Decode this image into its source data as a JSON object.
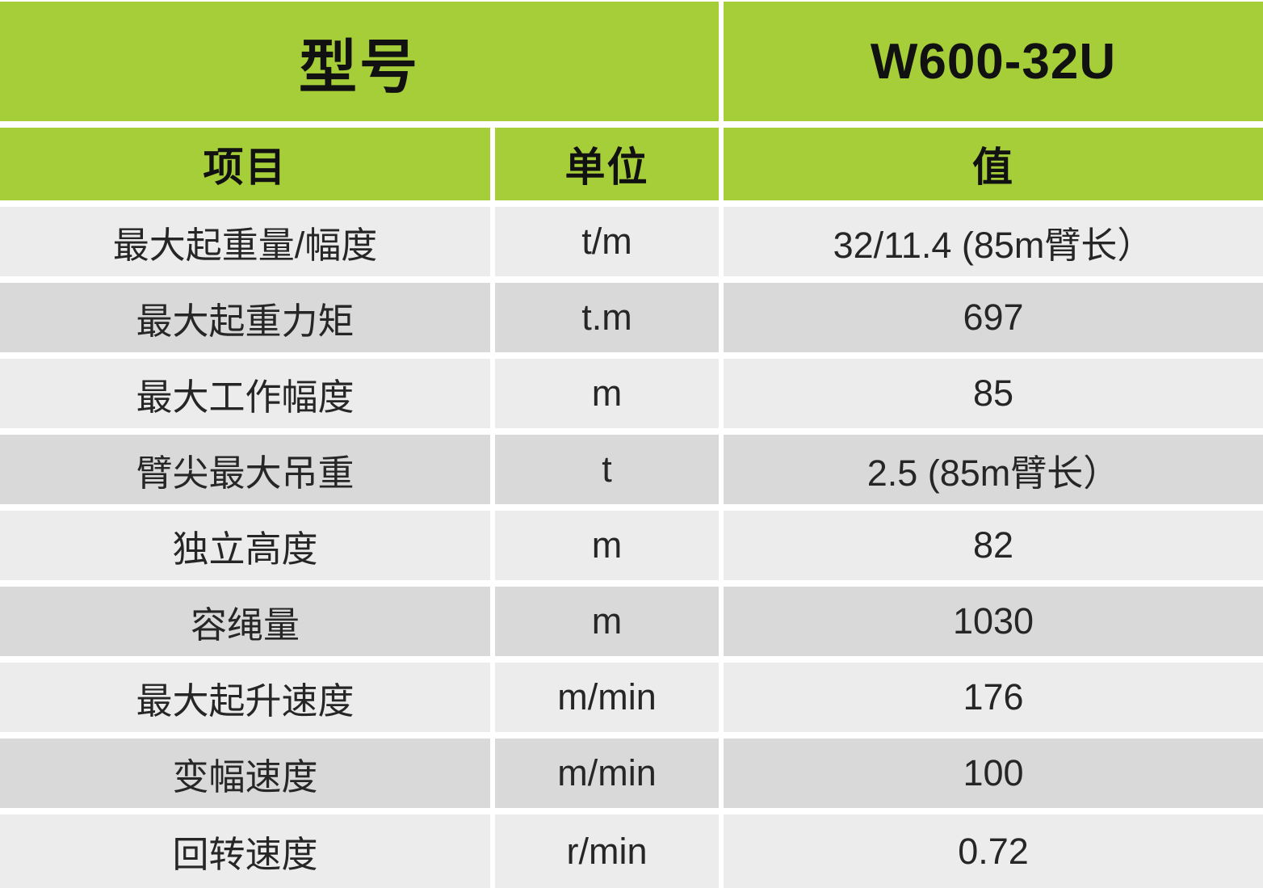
{
  "colors": {
    "header_green": "#a6ce39",
    "row_light": "#ececec",
    "row_dark": "#d9d9d9",
    "gap_white": "#ffffff",
    "header_text": "#111111",
    "body_text": "#262626"
  },
  "header": {
    "model_label": "型号",
    "model_value": "W600-32U"
  },
  "columns": {
    "item": "项目",
    "unit": "单位",
    "value": "值"
  },
  "rows": [
    {
      "item": "最大起重量/幅度",
      "unit": "t/m",
      "value": "32/11.4 (85m臂长）"
    },
    {
      "item": "最大起重力矩",
      "unit": "t.m",
      "value": "697"
    },
    {
      "item": "最大工作幅度",
      "unit": "m",
      "value": "85"
    },
    {
      "item": "臂尖最大吊重",
      "unit": "t",
      "value": "2.5 (85m臂长）"
    },
    {
      "item": "独立高度",
      "unit": "m",
      "value": "82"
    },
    {
      "item": "容绳量",
      "unit": "m",
      "value": "1030"
    },
    {
      "item": "最大起升速度",
      "unit": "m/min",
      "value": "176"
    },
    {
      "item": "变幅速度",
      "unit": "m/min",
      "value": "100"
    },
    {
      "item": "回转速度",
      "unit": "r/min",
      "value": "0.72"
    }
  ]
}
